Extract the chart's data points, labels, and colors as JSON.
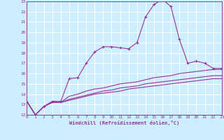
{
  "xlabel": "Windchill (Refroidissement éolien,°C)",
  "bg_color": "#cceeff",
  "grid_color": "#ffffff",
  "line_color": "#993399",
  "xmin": 0,
  "xmax": 23,
  "ymin": 12,
  "ymax": 23,
  "line1_x": [
    0,
    1,
    2,
    3,
    4,
    5,
    6,
    7,
    8,
    9,
    10,
    11,
    12,
    13,
    14,
    15,
    16,
    17,
    18,
    19,
    20,
    21,
    22,
    23
  ],
  "line1_y": [
    13.3,
    12.0,
    12.8,
    13.3,
    13.3,
    15.5,
    15.6,
    17.0,
    18.1,
    18.6,
    18.6,
    18.5,
    18.4,
    19.0,
    21.5,
    22.7,
    23.2,
    22.5,
    19.3,
    17.0,
    17.2,
    17.0,
    16.5,
    16.5
  ],
  "line2_x": [
    0,
    1,
    2,
    3,
    4,
    5,
    6,
    7,
    8,
    9,
    10,
    11,
    12,
    13,
    14,
    15,
    16,
    17,
    18,
    19,
    20,
    21,
    22,
    23
  ],
  "line2_y": [
    13.3,
    12.0,
    12.8,
    13.3,
    13.2,
    13.8,
    14.0,
    14.3,
    14.5,
    14.6,
    14.8,
    15.0,
    15.1,
    15.2,
    15.4,
    15.6,
    15.7,
    15.8,
    16.0,
    16.1,
    16.2,
    16.3,
    16.4,
    16.4
  ],
  "line3_x": [
    0,
    1,
    2,
    3,
    4,
    5,
    6,
    7,
    8,
    9,
    10,
    11,
    12,
    13,
    14,
    15,
    16,
    17,
    18,
    19,
    20,
    21,
    22,
    23
  ],
  "line3_y": [
    13.3,
    12.0,
    12.8,
    13.2,
    13.2,
    13.5,
    13.7,
    13.9,
    14.1,
    14.3,
    14.4,
    14.6,
    14.7,
    14.8,
    15.0,
    15.1,
    15.2,
    15.3,
    15.4,
    15.5,
    15.6,
    15.7,
    15.8,
    15.8
  ],
  "line4_x": [
    0,
    1,
    2,
    3,
    4,
    5,
    6,
    7,
    8,
    9,
    10,
    11,
    12,
    13,
    14,
    15,
    16,
    17,
    18,
    19,
    20,
    21,
    22,
    23
  ],
  "line4_y": [
    13.3,
    12.0,
    12.8,
    13.2,
    13.2,
    13.4,
    13.6,
    13.8,
    14.0,
    14.1,
    14.2,
    14.3,
    14.5,
    14.6,
    14.7,
    14.8,
    14.9,
    15.0,
    15.1,
    15.2,
    15.3,
    15.4,
    15.5,
    15.5
  ]
}
